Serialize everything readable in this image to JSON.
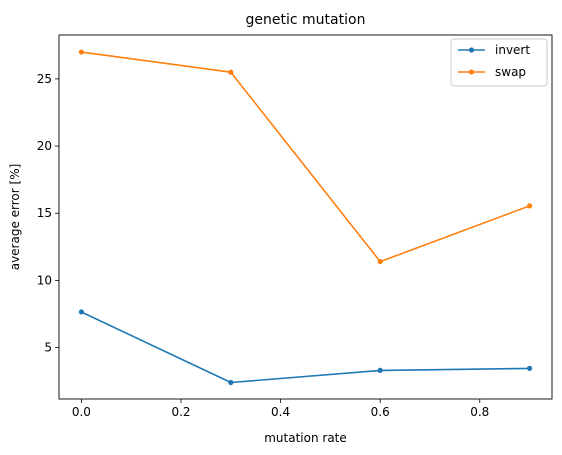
{
  "chart_data": {
    "type": "line",
    "title": "genetic mutation",
    "xlabel": "mutation rate",
    "ylabel": "average error [%]",
    "x": [
      0.0,
      0.3,
      0.6,
      0.9
    ],
    "xlim": [
      -0.045,
      0.945
    ],
    "ylim": [
      1.17,
      28.27
    ],
    "xticks": [
      0.0,
      0.2,
      0.4,
      0.6,
      0.8
    ],
    "xtick_labels": [
      "0.0",
      "0.2",
      "0.4",
      "0.6",
      "0.8"
    ],
    "yticks": [
      5,
      10,
      15,
      20,
      25
    ],
    "ytick_labels": [
      "5",
      "10",
      "15",
      "20",
      "25"
    ],
    "grid": false,
    "legend_position": "top-right",
    "series": [
      {
        "name": "invert",
        "color": "#1f77b4",
        "values": [
          7.65,
          2.4,
          3.3,
          3.45
        ]
      },
      {
        "name": "swap",
        "color": "#ff7f0e",
        "values": [
          27.0,
          25.5,
          11.4,
          15.55
        ]
      }
    ]
  }
}
